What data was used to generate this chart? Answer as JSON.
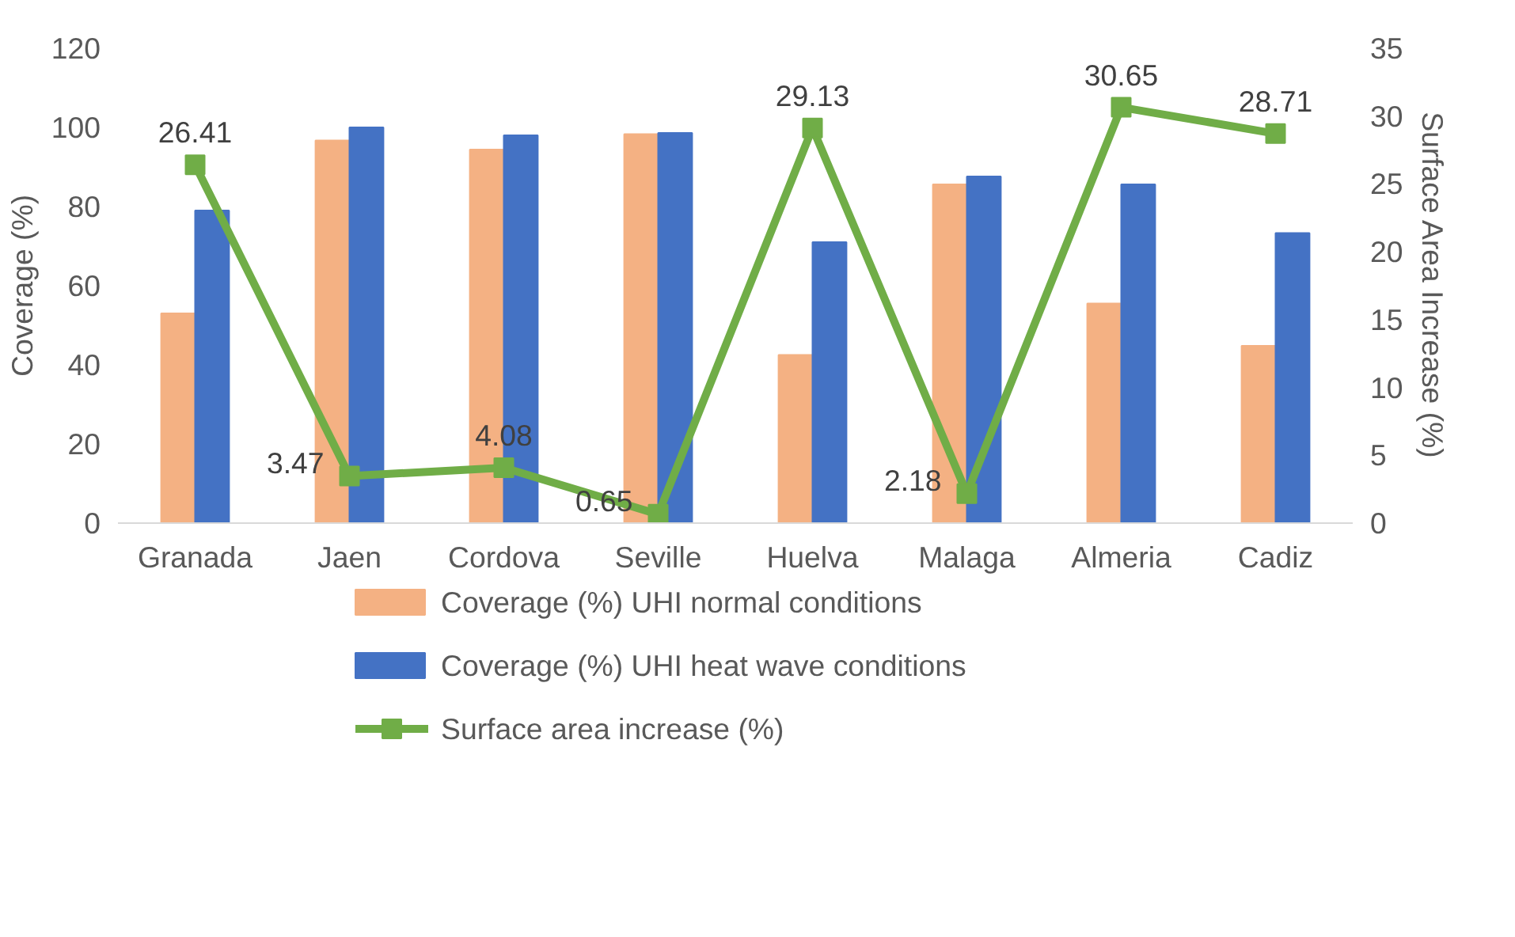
{
  "chart_data": {
    "type": "bar",
    "ylabel": "Coverage (%)",
    "y2label": "Surface Area Increase (%)",
    "categories": [
      "Granada",
      "Jaen",
      "Cordova",
      "Seville",
      "Huelva",
      "Malaga",
      "Almeria",
      "Cadiz"
    ],
    "ylim": [
      0,
      120
    ],
    "yticks": [
      0,
      20,
      40,
      60,
      80,
      100,
      120
    ],
    "y2lim": [
      0,
      35
    ],
    "y2ticks": [
      0,
      5,
      10,
      15,
      20,
      25,
      30,
      35
    ],
    "grid": false,
    "legend": "bottom",
    "series": [
      {
        "name": "Coverage (%) UHI normal conditions",
        "color": "#f4b183",
        "values": [
          53,
          96.7,
          94.4,
          98.3,
          42.5,
          85.6,
          55.5,
          44.8
        ]
      },
      {
        "name": "Coverage (%) UHI heat wave conditions",
        "color": "#4472c4",
        "values": [
          79,
          100,
          98,
          98.6,
          71,
          87.6,
          85.6,
          73.3
        ]
      },
      {
        "name": "Surface area increase (%)",
        "type": "line",
        "axis": "y2",
        "marker": "square",
        "color": "#70ad47",
        "values": [
          26.41,
          3.47,
          4.08,
          0.65,
          29.13,
          2.18,
          30.65,
          28.71
        ],
        "value_labels": [
          "26.41",
          "3.47",
          "4.08",
          "0.65",
          "29.13",
          "2.18",
          "30.65",
          "28.71"
        ]
      }
    ]
  }
}
